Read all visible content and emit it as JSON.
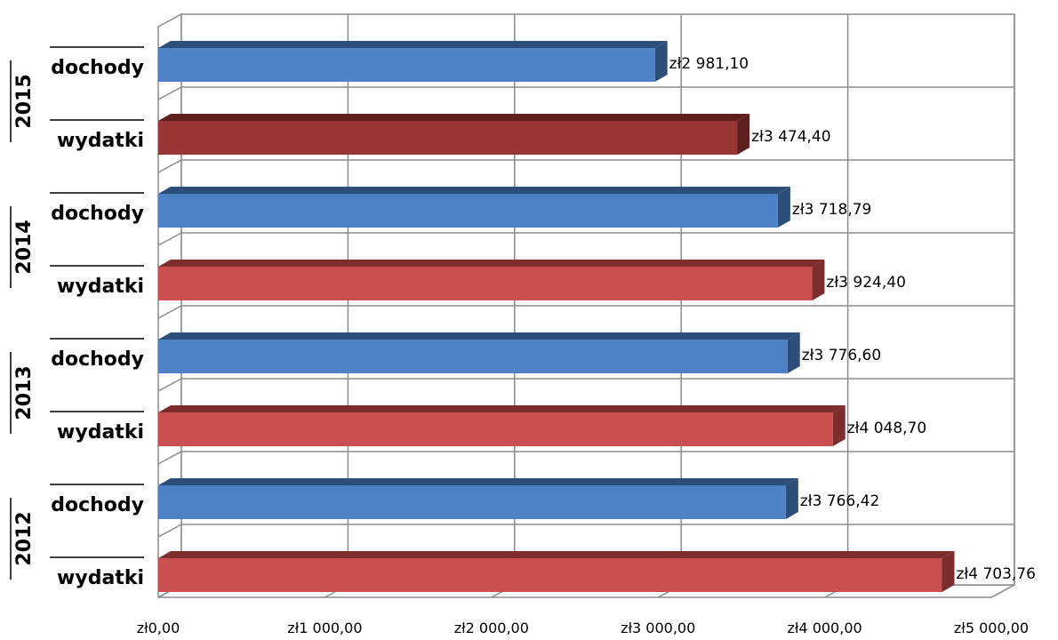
{
  "chart_data": {
    "type": "bar",
    "orientation": "horizontal",
    "style": "3d",
    "groups": [
      "2015",
      "2014",
      "2013",
      "2012"
    ],
    "categories": [
      "dochody",
      "wydatki"
    ],
    "bars": [
      {
        "group": "2015",
        "category": "dochody",
        "value": 2981.1,
        "label": "zł2 981,10",
        "color": "#4f81c7",
        "side_color": "#2d4e78"
      },
      {
        "group": "2015",
        "category": "wydatki",
        "value": 3474.4,
        "label": "zł3 474,40",
        "color": "#983535",
        "side_color": "#5e1f1f"
      },
      {
        "group": "2014",
        "category": "dochody",
        "value": 3718.79,
        "label": "zł3 718,79",
        "color": "#4f81c7",
        "side_color": "#2d4e78"
      },
      {
        "group": "2014",
        "category": "wydatki",
        "value": 3924.4,
        "label": "zł3 924,40",
        "color": "#c9504e",
        "side_color": "#7d2d2d"
      },
      {
        "group": "2013",
        "category": "dochody",
        "value": 3776.6,
        "label": "zł3 776,60",
        "color": "#4f81c7",
        "side_color": "#2d4e78"
      },
      {
        "group": "2013",
        "category": "wydatki",
        "value": 4048.7,
        "label": "zł4 048,70",
        "color": "#c9504e",
        "side_color": "#7d2d2d"
      },
      {
        "group": "2012",
        "category": "dochody",
        "value": 3766.42,
        "label": "zł3 766,42",
        "color": "#4f81c7",
        "side_color": "#2d4e78"
      },
      {
        "group": "2012",
        "category": "wydatki",
        "value": 4703.76,
        "label": "zł4 703,76",
        "color": "#c9504e",
        "side_color": "#7d2d2d"
      }
    ],
    "xlim": [
      0,
      5000
    ],
    "xticks": [
      0,
      1000,
      2000,
      3000,
      4000,
      5000
    ],
    "xtick_labels": [
      "zł0,00",
      "zł1 000,00",
      "zł2 000,00",
      "zł3 000,00",
      "zł4 000,00",
      "zł5 000,00"
    ],
    "grid": true,
    "legend": "none",
    "title": "",
    "xlabel": "",
    "ylabel": ""
  }
}
